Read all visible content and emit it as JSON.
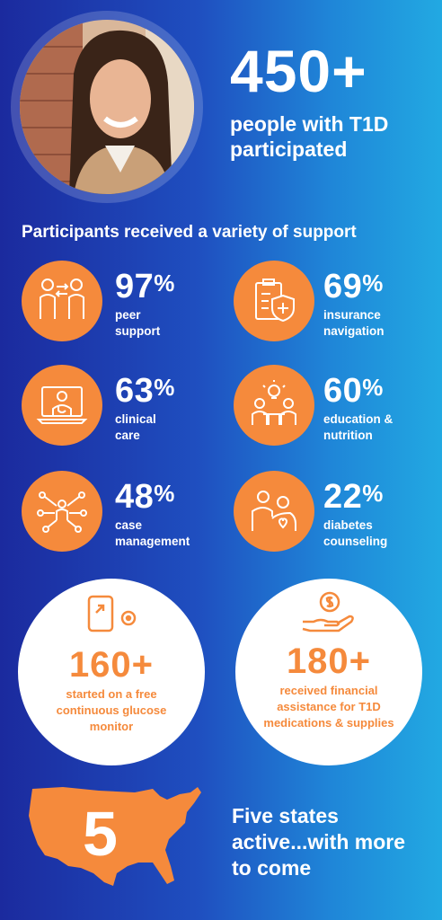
{
  "hero": {
    "number": "450+",
    "caption": "people with T1D participated"
  },
  "section_title": "Participants received a variety of support",
  "stats": [
    {
      "percent": "97",
      "label_line1": "peer",
      "label_line2": "support",
      "icon": "peer-support-icon"
    },
    {
      "percent": "69",
      "label_line1": "insurance",
      "label_line2": "navigation",
      "icon": "insurance-shield-icon"
    },
    {
      "percent": "63",
      "label_line1": "clinical",
      "label_line2": "care",
      "icon": "doctor-laptop-icon"
    },
    {
      "percent": "60",
      "label_line1": "education &",
      "label_line2": "nutrition",
      "icon": "education-lightbulb-icon"
    },
    {
      "percent": "48",
      "label_line1": "case",
      "label_line2": "management",
      "icon": "network-person-icon"
    },
    {
      "percent": "22",
      "label_line1": "diabetes",
      "label_line2": "counseling",
      "icon": "counseling-heart-icon"
    }
  ],
  "percent_sign": "%",
  "highlights": [
    {
      "number": "160+",
      "text": "started on a free continuous glucose monitor",
      "icon": "glucose-monitor-icon"
    },
    {
      "number": "180+",
      "text": "received financial assistance for T1D medications & supplies",
      "icon": "hand-coin-icon"
    }
  ],
  "states": {
    "count": "5",
    "text": "Five states active...with more to come",
    "icon": "usa-map-icon"
  },
  "colors": {
    "orange": "#f58a3c",
    "blue_dark": "#1b2a9e",
    "blue_light": "#22a9e2",
    "white": "#ffffff"
  }
}
